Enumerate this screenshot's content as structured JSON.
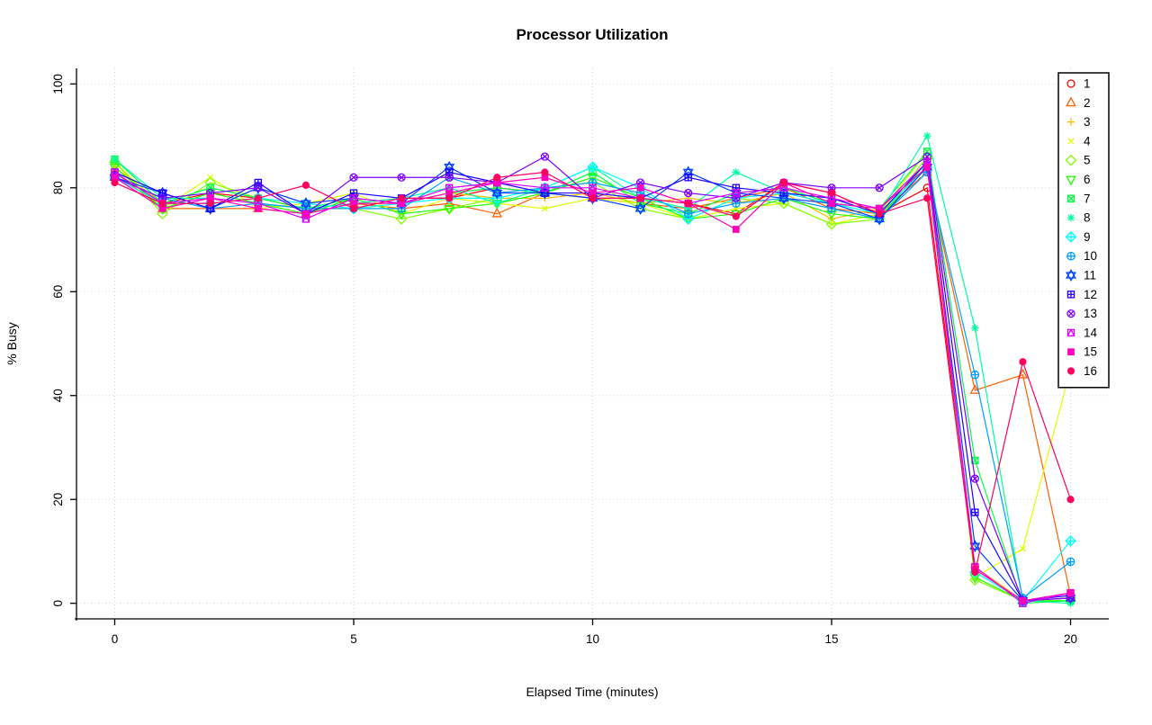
{
  "chart_data": {
    "type": "line",
    "title": "Processor Utilization",
    "xlabel": "Elapsed Time (minutes)",
    "ylabel": "% Busy",
    "xlim": [
      0,
      20
    ],
    "ylim": [
      0,
      100
    ],
    "x_ticks": [
      0,
      5,
      10,
      15,
      20
    ],
    "y_ticks": [
      0,
      20,
      40,
      60,
      80,
      100
    ],
    "grid": true,
    "grid_style": "dotted-lightgray",
    "legend_position": "top-right",
    "x": [
      0,
      1,
      2,
      3,
      4,
      5,
      6,
      7,
      8,
      9,
      10,
      11,
      12,
      13,
      14,
      15,
      16,
      17,
      18,
      19,
      20
    ],
    "series": [
      {
        "name": "1",
        "color": "#FF0000",
        "pch": 1,
        "values": [
          82,
          77,
          79,
          78,
          76,
          77,
          78,
          78,
          80,
          79,
          78,
          78,
          77,
          75,
          81,
          79,
          75,
          80,
          7,
          0.5,
          1
        ]
      },
      {
        "name": "2",
        "color": "#FF6000",
        "pch": 2,
        "values": [
          83,
          76,
          76,
          76,
          75,
          77,
          76,
          77,
          75,
          79,
          78,
          77,
          76,
          78,
          80,
          76,
          75,
          83,
          41,
          44,
          1.5
        ]
      },
      {
        "name": "3",
        "color": "#FFBF00",
        "pch": 3,
        "values": [
          84,
          77,
          78,
          77,
          76,
          76,
          77,
          79,
          78,
          78,
          79,
          77,
          78,
          77,
          79,
          74,
          76,
          84,
          7,
          0.5,
          1
        ]
      },
      {
        "name": "4",
        "color": "#DFFF00",
        "pch": 4,
        "values": [
          85,
          76,
          82,
          76,
          77,
          79,
          75,
          78,
          77,
          76,
          78,
          77,
          74,
          76,
          77,
          73,
          75,
          87,
          5,
          10.5,
          45
        ]
      },
      {
        "name": "5",
        "color": "#80FF00",
        "pch": 5,
        "values": [
          85,
          75,
          81,
          78,
          76,
          76,
          74,
          76,
          78,
          80,
          81,
          76,
          74,
          78,
          77,
          73,
          74,
          86,
          4.5,
          0.5,
          0.5
        ]
      },
      {
        "name": "6",
        "color": "#20FF00",
        "pch": 6,
        "values": [
          84,
          76,
          79,
          77,
          75,
          78,
          75,
          76,
          77,
          79,
          82,
          78,
          74,
          75,
          78,
          75,
          74,
          85,
          5,
          0.5,
          0.5
        ]
      },
      {
        "name": "7",
        "color": "#00FF40",
        "pch": 7,
        "values": [
          85.5,
          77,
          80,
          78,
          76,
          78,
          77,
          79,
          80,
          79,
          83,
          77,
          75,
          79,
          80,
          77,
          76,
          87,
          27.5,
          0,
          0.5
        ]
      },
      {
        "name": "8",
        "color": "#00FF9F",
        "pch": 8,
        "values": [
          85.5,
          78,
          78,
          77,
          76,
          77,
          78,
          80,
          77,
          80,
          84,
          78,
          76,
          83,
          79,
          78,
          75,
          90,
          53,
          0.5,
          0
        ]
      },
      {
        "name": "9",
        "color": "#00FFFF",
        "pch": 9,
        "values": [
          82,
          77,
          77,
          78,
          77,
          76,
          77,
          78,
          78,
          80,
          84,
          80,
          74,
          78,
          79,
          77,
          75,
          84,
          6,
          0.5,
          12
        ]
      },
      {
        "name": "10",
        "color": "#009FFF",
        "pch": 10,
        "values": [
          82,
          78,
          76,
          77,
          76,
          76,
          76,
          82,
          79,
          80,
          81,
          79,
          75,
          77,
          78,
          76,
          74,
          83,
          44,
          1,
          8
        ]
      },
      {
        "name": "11",
        "color": "#0040FF",
        "pch": 11,
        "values": [
          82,
          79,
          76,
          80,
          77,
          78,
          77,
          84,
          79,
          79,
          78,
          76,
          83,
          79,
          78,
          77,
          74,
          84,
          11,
          0.5,
          1
        ]
      },
      {
        "name": "12",
        "color": "#2000FF",
        "pch": 12,
        "values": [
          83,
          79,
          76,
          81,
          75,
          79,
          78,
          83,
          81,
          79,
          79,
          78,
          82,
          80,
          79,
          78,
          75,
          85,
          17.5,
          0.5,
          1.5
        ]
      },
      {
        "name": "13",
        "color": "#8000FF",
        "pch": 13,
        "values": [
          82,
          78,
          79,
          80,
          75,
          82,
          82,
          82,
          81,
          86,
          78,
          81,
          79,
          78,
          81,
          80,
          80,
          86,
          24,
          0.5,
          1
        ]
      },
      {
        "name": "14",
        "color": "#DF00FF",
        "pch": 14,
        "values": [
          83,
          77,
          78,
          77,
          74,
          78,
          77,
          80,
          81,
          80,
          80,
          78,
          77,
          79,
          80,
          78,
          76,
          85,
          7,
          0,
          2
        ]
      },
      {
        "name": "15",
        "color": "#FF00BF",
        "pch": 15,
        "values": [
          82,
          76,
          78,
          76,
          75,
          77,
          77,
          79,
          81,
          82,
          79,
          80,
          77,
          72,
          81,
          77,
          76,
          84,
          6.5,
          0.5,
          2
        ]
      },
      {
        "name": "16",
        "color": "#FF0060",
        "pch": 16,
        "values": [
          81,
          77,
          77,
          78,
          80.5,
          76,
          78,
          78,
          82,
          83,
          78,
          78,
          77,
          74.5,
          81,
          79,
          75,
          78,
          6,
          46.5,
          20
        ]
      }
    ]
  }
}
